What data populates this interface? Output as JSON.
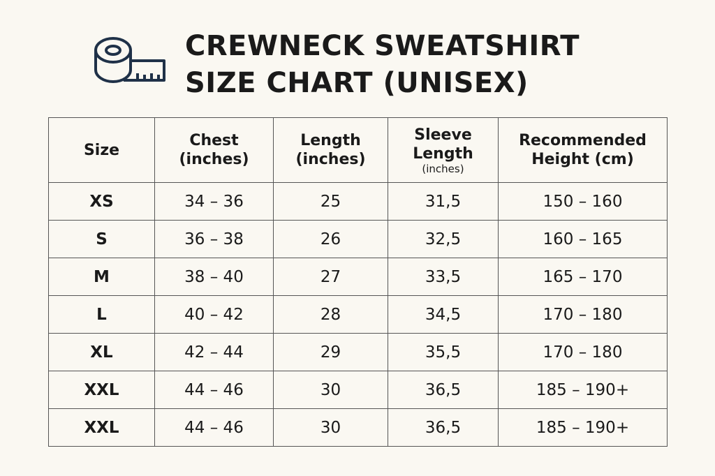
{
  "header": {
    "title": [
      "CREWNECK SWEATSHIRT",
      "SIZE CHART (UNISEX)"
    ]
  },
  "table": {
    "columns": [
      {
        "lines": [
          "Size"
        ]
      },
      {
        "lines": [
          "Chest",
          "(inches)"
        ]
      },
      {
        "lines": [
          "Length",
          "(inches)"
        ]
      },
      {
        "lines": [
          "Sleeve",
          "Length"
        ],
        "note": "(inches)"
      },
      {
        "lines": [
          "Recommended",
          "Height (cm)"
        ]
      }
    ],
    "rows": [
      [
        "XS",
        "34 – 36",
        25,
        "31,5",
        "150 – 160"
      ],
      [
        "S",
        "36 – 38",
        26,
        "32,5",
        "160 – 165"
      ],
      [
        "M",
        "38 – 40",
        27,
        "33,5",
        "165 – 170"
      ],
      [
        "L",
        "40 – 42",
        28,
        "34,5",
        "170 – 180"
      ],
      [
        "XL",
        "42 – 44",
        29,
        "35,5",
        "170 – 180"
      ],
      [
        "XXL",
        "44 – 46",
        30,
        "36,5",
        "185 – 190+"
      ],
      [
        "XXL",
        "44 – 46",
        30,
        "36,5",
        "185 – 190+"
      ]
    ]
  }
}
